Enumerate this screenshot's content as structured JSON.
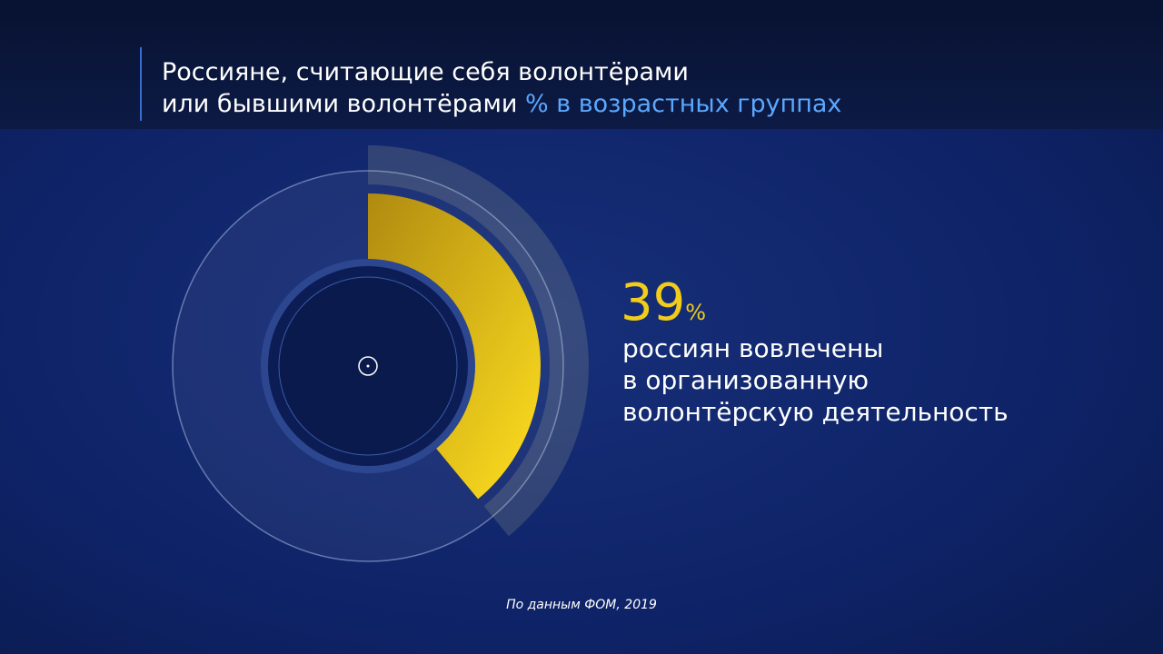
{
  "chart_data": {
    "type": "radial",
    "title": [
      "Россияне, считающие себя волонтёрами",
      "или бывшими волонтёрами"
    ],
    "title_highlight": "% в возрастных группах",
    "value": 39,
    "value_unit": "%",
    "ylim": [
      0,
      100
    ],
    "color": "#f2cc1a",
    "description": [
      "россиян вовлечены",
      "в организованную",
      "волонтёрскую деятельность"
    ],
    "source": "По данным ФОМ, 2019"
  }
}
